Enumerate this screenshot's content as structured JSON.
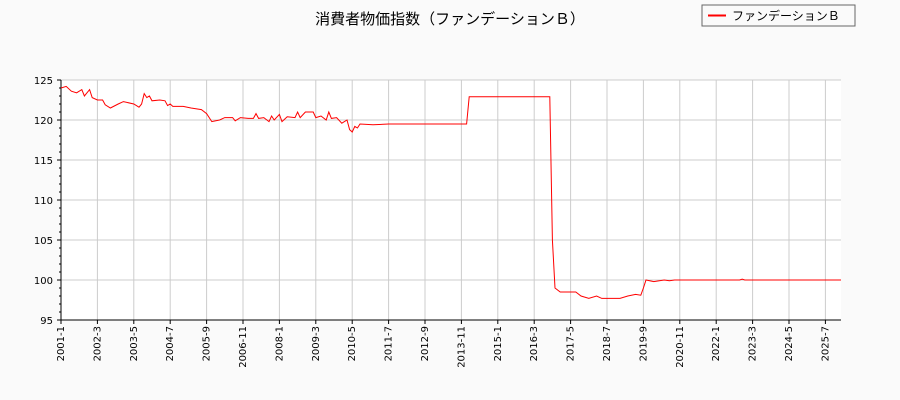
{
  "chart_data": {
    "type": "line",
    "title": "消費者物価指数（ファンデーションＢ）",
    "legend": {
      "entries": [
        "ファンデーションＢ"
      ],
      "placement": "top-right"
    },
    "ylim": [
      95,
      125
    ],
    "yticks": [
      95,
      100,
      105,
      110,
      115,
      120,
      125
    ],
    "xlim": [
      "2001-1",
      "2026-1"
    ],
    "xticks": [
      "2001-1",
      "2002-3",
      "2003-5",
      "2004-7",
      "2005-9",
      "2006-11",
      "2008-1",
      "2009-3",
      "2010-5",
      "2011-7",
      "2012-9",
      "2013-11",
      "2015-1",
      "2016-3",
      "2017-5",
      "2018-7",
      "2019-9",
      "2020-11",
      "2022-1",
      "2023-3",
      "2024-5",
      "2025-7"
    ],
    "grid": true,
    "series": [
      {
        "name": "ファンデーションＢ",
        "color": "#ff0000",
        "points": [
          [
            "2001-1",
            124.0
          ],
          [
            "2001-3",
            124.2
          ],
          [
            "2001-5",
            123.6
          ],
          [
            "2001-7",
            123.4
          ],
          [
            "2001-9",
            123.8
          ],
          [
            "2001-10",
            123.0
          ],
          [
            "2001-12",
            123.8
          ],
          [
            "2002-1",
            122.8
          ],
          [
            "2002-3",
            122.5
          ],
          [
            "2002-5",
            122.5
          ],
          [
            "2002-6",
            121.9
          ],
          [
            "2002-8",
            121.5
          ],
          [
            "2002-11",
            122.0
          ],
          [
            "2003-1",
            122.3
          ],
          [
            "2003-5",
            122.0
          ],
          [
            "2003-7",
            121.6
          ],
          [
            "2003-8",
            122.0
          ],
          [
            "2003-9",
            123.3
          ],
          [
            "2003-10",
            122.8
          ],
          [
            "2003-11",
            123.0
          ],
          [
            "2003-12",
            122.4
          ],
          [
            "2004-3",
            122.5
          ],
          [
            "2004-5",
            122.4
          ],
          [
            "2004-6",
            121.8
          ],
          [
            "2004-7",
            122.0
          ],
          [
            "2004-8",
            121.7
          ],
          [
            "2004-12",
            121.7
          ],
          [
            "2005-3",
            121.5
          ],
          [
            "2005-7",
            121.3
          ],
          [
            "2005-9",
            120.8
          ],
          [
            "2005-11",
            119.8
          ],
          [
            "2006-2",
            120.0
          ],
          [
            "2006-4",
            120.3
          ],
          [
            "2006-7",
            120.3
          ],
          [
            "2006-8",
            119.9
          ],
          [
            "2006-10",
            120.3
          ],
          [
            "2007-1",
            120.2
          ],
          [
            "2007-3",
            120.2
          ],
          [
            "2007-4",
            120.8
          ],
          [
            "2007-5",
            120.2
          ],
          [
            "2007-7",
            120.3
          ],
          [
            "2007-9",
            119.8
          ],
          [
            "2007-10",
            120.5
          ],
          [
            "2007-11",
            120.0
          ],
          [
            "2008-1",
            120.7
          ],
          [
            "2008-2",
            119.8
          ],
          [
            "2008-4",
            120.4
          ],
          [
            "2008-7",
            120.3
          ],
          [
            "2008-8",
            121.0
          ],
          [
            "2008-9",
            120.3
          ],
          [
            "2008-11",
            121.0
          ],
          [
            "2009-2",
            121.0
          ],
          [
            "2009-3",
            120.3
          ],
          [
            "2009-5",
            120.5
          ],
          [
            "2009-7",
            120.0
          ],
          [
            "2009-8",
            121.0
          ],
          [
            "2009-9",
            120.2
          ],
          [
            "2009-11",
            120.3
          ],
          [
            "2010-1",
            119.6
          ],
          [
            "2010-3",
            120.0
          ],
          [
            "2010-4",
            118.8
          ],
          [
            "2010-5",
            118.5
          ],
          [
            "2010-6",
            119.2
          ],
          [
            "2010-7",
            119.0
          ],
          [
            "2010-8",
            119.5
          ],
          [
            "2011-1",
            119.4
          ],
          [
            "2011-7",
            119.5
          ],
          [
            "2014-1",
            119.5
          ],
          [
            "2014-2",
            122.9
          ],
          [
            "2016-9",
            122.9
          ],
          [
            "2016-10",
            105.0
          ],
          [
            "2016-11",
            99.0
          ],
          [
            "2017-1",
            98.5
          ],
          [
            "2017-7",
            98.5
          ],
          [
            "2017-9",
            98.0
          ],
          [
            "2017-12",
            97.7
          ],
          [
            "2018-3",
            98.0
          ],
          [
            "2018-5",
            97.7
          ],
          [
            "2018-12",
            97.7
          ],
          [
            "2019-3",
            98.0
          ],
          [
            "2019-6",
            98.2
          ],
          [
            "2019-8",
            98.1
          ],
          [
            "2019-9",
            99.0
          ],
          [
            "2019-10",
            100.0
          ],
          [
            "2020-1",
            99.8
          ],
          [
            "2020-5",
            100.0
          ],
          [
            "2020-7",
            99.9
          ],
          [
            "2020-9",
            100.0
          ],
          [
            "2022-10",
            100.0
          ],
          [
            "2022-11",
            100.1
          ],
          [
            "2022-12",
            100.0
          ],
          [
            "2026-1",
            100.0
          ]
        ]
      }
    ]
  }
}
